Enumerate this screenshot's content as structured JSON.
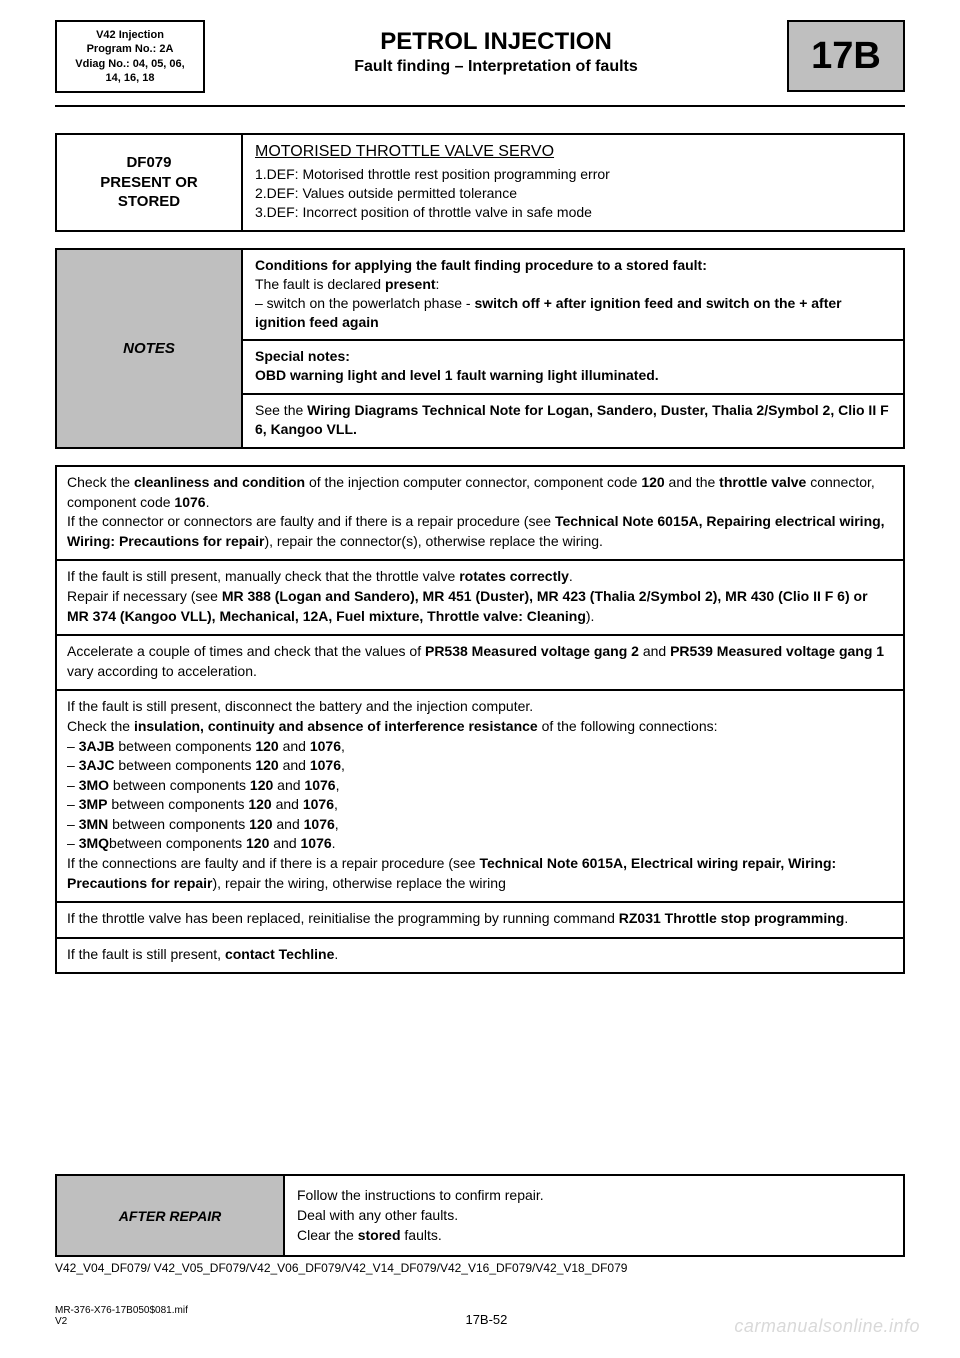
{
  "colors": {
    "grey": "#bfbfbf",
    "border": "#000000",
    "text": "#000000",
    "watermark": "#d9d9d9",
    "bg": "#ffffff"
  },
  "fonts": {
    "base_family": "Arial",
    "title_size_pt": 24,
    "subtitle_size_pt": 16,
    "body_size_pt": 14,
    "meta_size_pt": 11,
    "code_size_pt": 38
  },
  "meta": {
    "l1": "V42 Injection",
    "l2": "Program No.: 2A",
    "l3": "Vdiag No.: 04, 05, 06,",
    "l4": "14, 16, 18"
  },
  "title": "PETROL INJECTION",
  "subtitle": "Fault finding – Interpretation of faults",
  "code": "17B",
  "fault": {
    "id_l1": "DF079",
    "id_l2": "PRESENT OR",
    "id_l3": "STORED",
    "name": "MOTORISED THROTTLE VALVE SERVO",
    "defs": [
      "1.DEF: Motorised throttle rest position programming error",
      "2.DEF: Values outside permitted tolerance",
      "3.DEF: Incorrect position of throttle valve in safe mode"
    ]
  },
  "notes": {
    "label": "NOTES",
    "row1_a": "Conditions for applying the fault finding procedure to a stored fault:",
    "row1_b_pre": "The fault is declared ",
    "row1_b_bold": "present",
    "row1_b_post": ":",
    "row1_c_pre": "–  switch on the powerlatch phase - ",
    "row1_c_bold": "switch off + after ignition feed and switch on the + after ignition feed again",
    "row2_a": "Special notes:",
    "row2_b": "OBD warning light and level 1 fault warning light illuminated.",
    "row3_pre": "See the ",
    "row3_bold": "Wiring Diagrams Technical Note for Logan, Sandero, Duster, Thalia 2/Symbol 2, Clio II F 6, Kangoo VLL.",
    "row3_post": ""
  },
  "steps": {
    "s1": {
      "p1_pre": "Check the ",
      "p1_b1": "cleanliness and condition",
      "p1_mid": " of the injection computer connector, component code ",
      "p1_b2": "120",
      "p1_mid2": " and the ",
      "p1_b3": "throttle valve",
      "p1_mid3": " connector, component code ",
      "p1_b4": "1076",
      "p1_end": ".",
      "p2_pre": "If the connector or connectors are faulty and if there is a repair procedure (see ",
      "p2_b": "Technical Note 6015A, Repairing electrical wiring, Wiring: Precautions for repair",
      "p2_end": "), repair the connector(s), otherwise replace the wiring."
    },
    "s2": {
      "p1_pre": "If the fault is still present, manually check that the throttle valve ",
      "p1_b": "rotates correctly",
      "p1_end": ".",
      "p2_pre": "Repair if necessary (see ",
      "p2_b": "MR 388 (Logan and Sandero), MR 451 (Duster), MR 423 (Thalia 2/Symbol 2), MR 430 (Clio II F 6) or MR 374 (Kangoo VLL), Mechanical, 12A, Fuel mixture, Throttle valve: Cleaning",
      "p2_end": ")."
    },
    "s3": {
      "pre": "Accelerate a couple of times and check that the values of ",
      "b1": "PR538 Measured voltage gang 2",
      "mid": " and ",
      "b2": "PR539 Measured voltage gang 1",
      "end": " vary according to acceleration."
    },
    "s4": {
      "l1": "If the fault is still present, disconnect the battery and the injection computer.",
      "l2_pre": "Check the ",
      "l2_b": "insulation, continuity and absence of interference resistance",
      "l2_end": " of the following connections:",
      "conns": [
        {
          "pre": "–  ",
          "b1": "3AJB",
          "mid": " between components ",
          "b2": "120",
          "mid2": " and ",
          "b3": "1076",
          "end": ","
        },
        {
          "pre": "–  ",
          "b1": "3AJC",
          "mid": " between components ",
          "b2": "120",
          "mid2": " and ",
          "b3": "1076",
          "end": ","
        },
        {
          "pre": "–  ",
          "b1": "3MO",
          "mid": " between components ",
          "b2": "120",
          "mid2": " and ",
          "b3": "1076",
          "end": ","
        },
        {
          "pre": "–  ",
          "b1": "3MP",
          "mid": " between components ",
          "b2": "120",
          "mid2": " and ",
          "b3": "1076",
          "end": ","
        },
        {
          "pre": "–  ",
          "b1": "3MN",
          "mid": " between components ",
          "b2": "120",
          "mid2": " and ",
          "b3": "1076",
          "end": ","
        },
        {
          "pre": "–  ",
          "b1": "3MQ",
          "mid": "between components ",
          "b2": "120",
          "mid2": " and ",
          "b3": "1076",
          "end": "."
        }
      ],
      "l3_pre": "If the connections are faulty and if there is a repair procedure (see ",
      "l3_b": "Technical Note 6015A, Electrical wiring repair, Wiring: Precautions for repair",
      "l3_end": "), repair the wiring, otherwise replace the wiring"
    },
    "s5": {
      "pre": "If the throttle valve has been replaced, reinitialise the programming by running command ",
      "b": "RZ031 Throttle stop programming",
      "end": "."
    },
    "s6": {
      "pre": "If the fault is still present, ",
      "b": "contact Techline",
      "end": "."
    }
  },
  "after": {
    "label": "AFTER REPAIR",
    "l1": "Follow the instructions to confirm repair.",
    "l2": "Deal with any other faults.",
    "l3_pre": "Clear the ",
    "l3_b": "stored",
    "l3_end": " faults."
  },
  "refline": "V42_V04_DF079/ V42_V05_DF079/V42_V06_DF079/V42_V14_DF079/V42_V16_DF079/V42_V18_DF079",
  "footer": {
    "left1": "MR-376-X76-17B050$081.mif",
    "left2": "V2",
    "page": "17B-52"
  },
  "watermark": "carmanualsonline.info"
}
